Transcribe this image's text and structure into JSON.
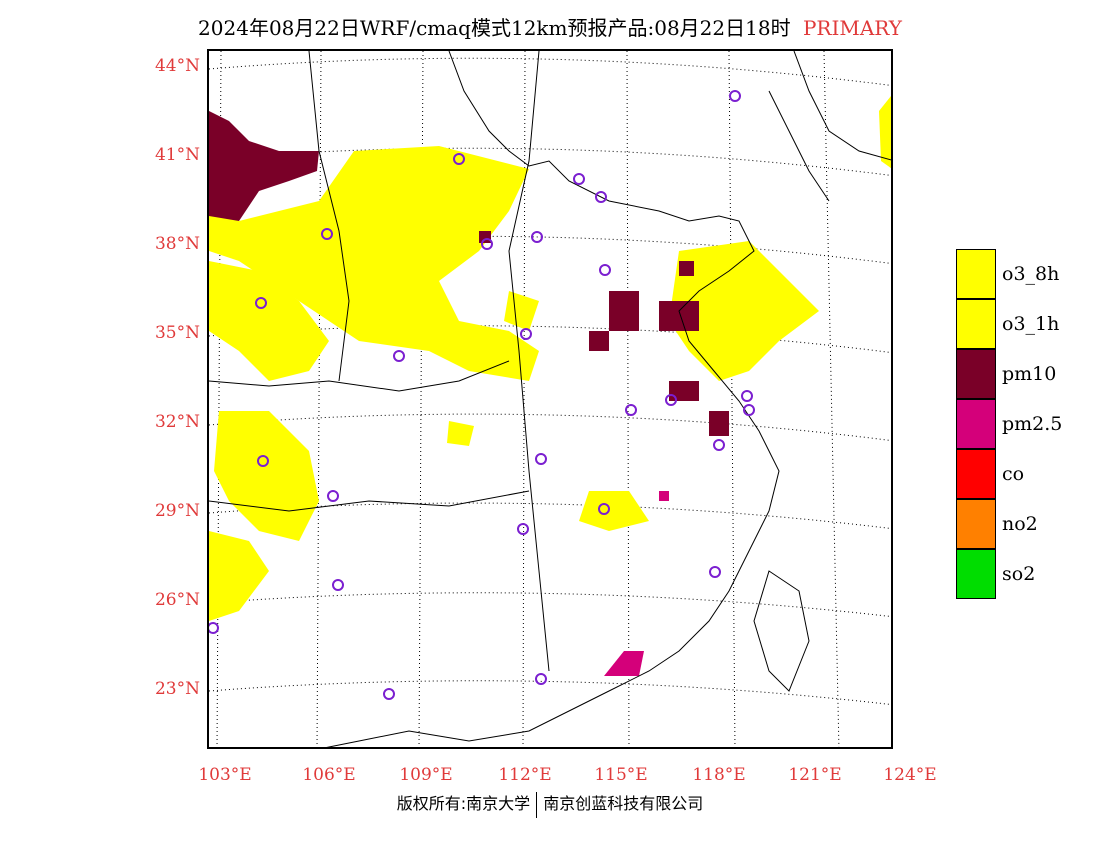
{
  "title": {
    "main": "2024年08月22日WRF/cmaq模式12km预报产品:08月22日18时",
    "tag": "PRIMARY"
  },
  "lat_labels": [
    "44°N",
    "41°N",
    "38°N",
    "35°N",
    "32°N",
    "29°N",
    "26°N",
    "23°N"
  ],
  "lon_labels": [
    "103°E",
    "106°E",
    "109°E",
    "112°E",
    "115°E",
    "118°E",
    "121°E",
    "124°E"
  ],
  "legend": [
    {
      "label": "o3_8h",
      "color": "#ffff00"
    },
    {
      "label": "o3_1h",
      "color": "#ffff00"
    },
    {
      "label": "pm10",
      "color": "#7a0028"
    },
    {
      "label": "pm2.5",
      "color": "#d4007a"
    },
    {
      "label": "co",
      "color": "#ff0000"
    },
    {
      "label": "no2",
      "color": "#ff8000"
    },
    {
      "label": "so2",
      "color": "#00dd00"
    }
  ],
  "footer": {
    "left": "版权所有:南京大学",
    "right": "南京创蓝科技有限公司"
  }
}
